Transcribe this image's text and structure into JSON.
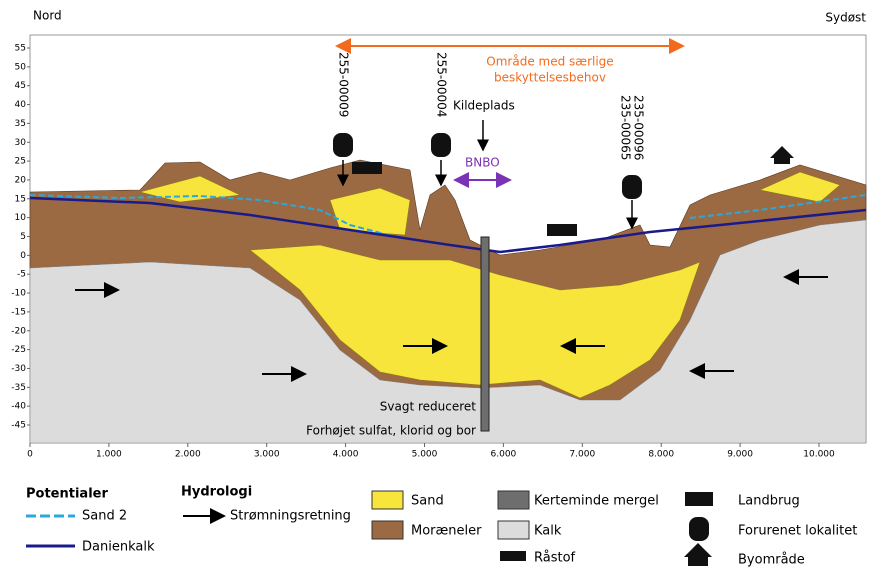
{
  "header": {
    "left": "Nord",
    "right": "Sydøst"
  },
  "axis": {
    "yticks": [
      55,
      50,
      45,
      40,
      35,
      30,
      25,
      20,
      15,
      10,
      5,
      0,
      -5,
      -10,
      -15,
      -20,
      -25,
      -30,
      -35,
      -40,
      -45
    ],
    "xticks": [
      "0",
      "1.000",
      "2.000",
      "3.000",
      "4.000",
      "5.000",
      "6.000",
      "7.000",
      "8.000",
      "9.000",
      "10.000"
    ]
  },
  "annotations": {
    "zone": [
      "Område med særlige",
      "beskyttelsesbehov"
    ],
    "boreholes": [
      "255-00009",
      "255-00004",
      "235-00065",
      "235-00096"
    ],
    "source": "Kildeplads",
    "bnbo": "BNBO",
    "well_notes": [
      "Svagt reduceret",
      "Forhøjet sulfat, klorid og bor"
    ]
  },
  "legend": {
    "potentials": {
      "title": "Potentialer",
      "items": [
        "Sand 2",
        "Danienkalk"
      ]
    },
    "hydrology": {
      "title": "Hydrologi",
      "items": [
        "Strømningsretning"
      ]
    },
    "materials": [
      "Sand",
      "Moræneler",
      "Kerteminde mergel",
      "Kalk",
      "Råstof"
    ],
    "symbols": [
      "Landbrug",
      "Forurenet lokalitet",
      "Byområde"
    ]
  }
}
